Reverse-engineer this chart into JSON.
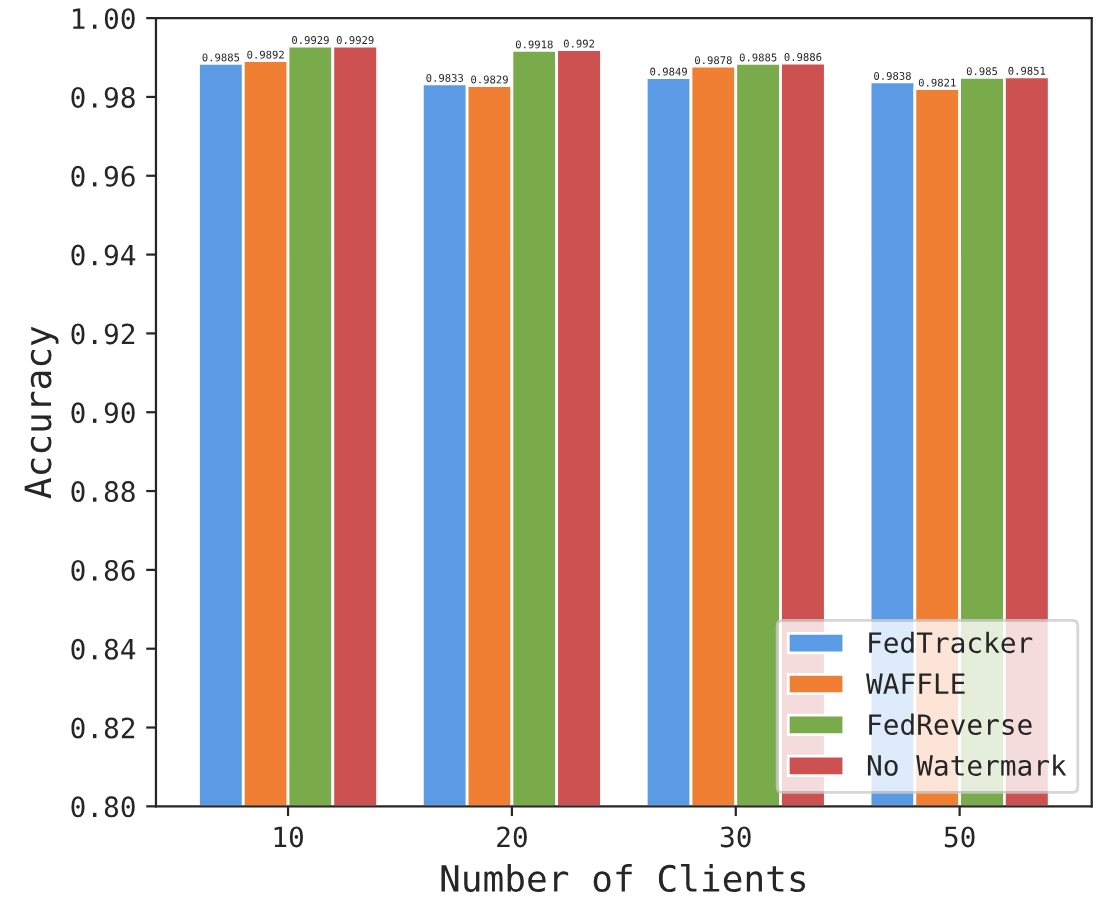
{
  "chart_data": {
    "type": "bar",
    "xlabel": "Number of Clients",
    "ylabel": "Accuracy",
    "categories": [
      "10",
      "20",
      "30",
      "50"
    ],
    "series": [
      {
        "name": "FedTracker",
        "color": "#5b9be6",
        "values": [
          0.9885,
          0.9833,
          0.9849,
          0.9838
        ]
      },
      {
        "name": "WAFFLE",
        "color": "#f07f33",
        "values": [
          0.9892,
          0.9829,
          0.9878,
          0.9821
        ]
      },
      {
        "name": "FedReverse",
        "color": "#79ab4a",
        "values": [
          0.9929,
          0.9918,
          0.9885,
          0.985
        ]
      },
      {
        "name": "No Watermark",
        "color": "#cc5150",
        "values": [
          0.9929,
          0.992,
          0.9886,
          0.9851
        ]
      }
    ],
    "ylim": [
      0.8,
      1.0
    ],
    "yticks": [
      {
        "value": 0.8,
        "label": "0.80"
      },
      {
        "value": 0.82,
        "label": "0.82"
      },
      {
        "value": 0.84,
        "label": "0.84"
      },
      {
        "value": 0.86,
        "label": "0.86"
      },
      {
        "value": 0.88,
        "label": "0.88"
      },
      {
        "value": 0.9,
        "label": "0.90"
      },
      {
        "value": 0.92,
        "label": "0.92"
      },
      {
        "value": 0.94,
        "label": "0.94"
      },
      {
        "value": 0.96,
        "label": "0.96"
      },
      {
        "value": 0.98,
        "label": "0.98"
      },
      {
        "value": 1.0,
        "label": "1.00"
      }
    ],
    "data_labels": true,
    "legend": "bottom right",
    "grid": false
  }
}
